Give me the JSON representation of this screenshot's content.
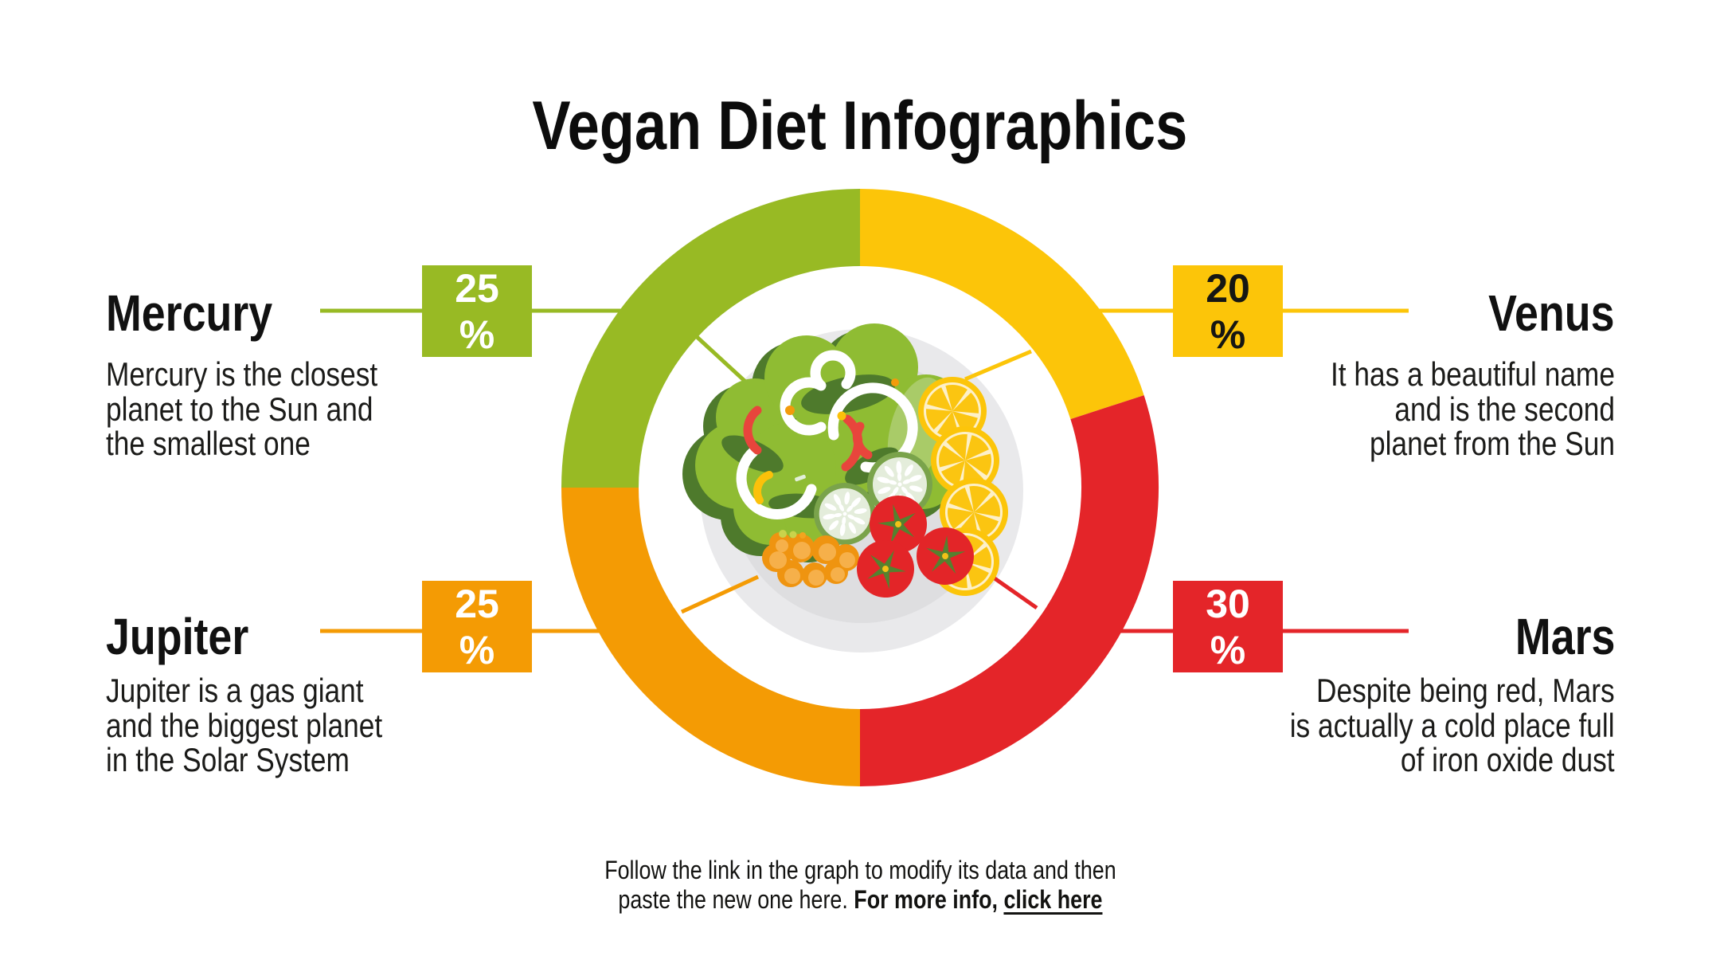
{
  "title": "Vegan Diet Infographics",
  "colors": {
    "green": "#98BA24",
    "yellow": "#FCC509",
    "orange": "#F49B04",
    "red": "#E42529",
    "text": "#151513",
    "plate_rim": "#E9E9EB",
    "plate_center": "#DEDEE0"
  },
  "chart_data": {
    "type": "pie",
    "subtype": "donut",
    "title": "Vegan Diet Infographics",
    "categories": [
      "Mercury",
      "Venus",
      "Jupiter",
      "Mars"
    ],
    "values": [
      25,
      20,
      25,
      30
    ],
    "unit": "%",
    "start_angle_deg": 0,
    "direction": "clockwise",
    "legend_position": "none",
    "center_illustration": "salad plate",
    "segments": [
      {
        "label": "Venus",
        "value": 20,
        "color": "#FCC509"
      },
      {
        "label": "Mars",
        "value": 30,
        "color": "#E42529"
      },
      {
        "label": "Jupiter",
        "value": 25,
        "color": "#F49B04"
      },
      {
        "label": "Mercury",
        "value": 25,
        "color": "#98BA24"
      }
    ]
  },
  "planets": [
    {
      "name": "Mercury",
      "value": 25,
      "pct": "25\n%",
      "color": "#98BA24",
      "description": "Mercury is the closest\nplanet to the Sun and\nthe smallest one"
    },
    {
      "name": "Venus",
      "value": 20,
      "pct": "20\n%",
      "color": "#FCC509",
      "description": "It has a beautiful name\nand is the second\nplanet from the Sun"
    },
    {
      "name": "Jupiter",
      "value": 25,
      "pct": "25\n%",
      "color": "#F49B04",
      "description": "Jupiter is a gas giant\nand the biggest planet\nin the Solar System"
    },
    {
      "name": "Mars",
      "value": 30,
      "pct": "30\n%",
      "color": "#E42529",
      "description": "Despite being red, Mars\nis actually a cold place full\nof iron oxide dust"
    }
  ],
  "footer": {
    "text": "Follow the link in the graph to modify its data and then\npaste the new one here. ",
    "bold_text": "For more info, ",
    "link_text": "click here"
  }
}
